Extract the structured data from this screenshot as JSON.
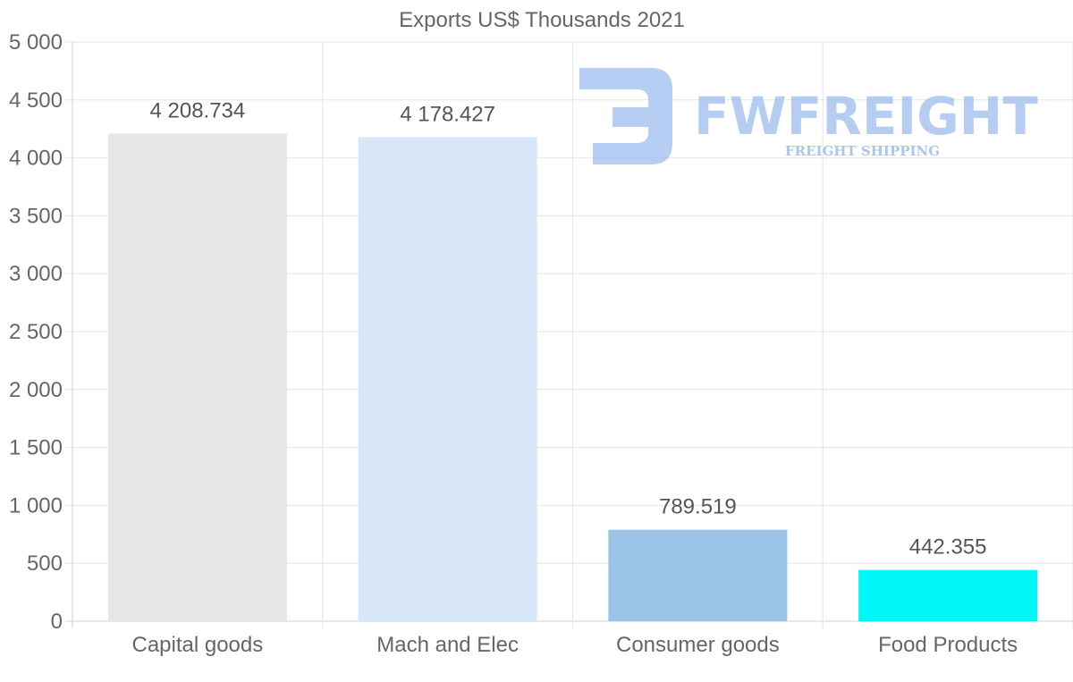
{
  "chart_data": {
    "type": "bar",
    "title": "Exports US$ Thousands 2021",
    "categories": [
      "Capital goods",
      "Mach and Elec",
      "Consumer goods",
      "Food Products"
    ],
    "values": [
      4208.734,
      4178.427,
      789.519,
      442.355
    ],
    "value_labels": [
      "4 208.734",
      "4 178.427",
      "789.519",
      "442.355"
    ],
    "colors": [
      "#e6e6e6",
      "#d7e7f8",
      "#9bc4e7",
      "#00f7f7"
    ],
    "ylim": [
      0,
      5000
    ],
    "yticks": [
      0,
      500,
      1000,
      1500,
      2000,
      2500,
      3000,
      3500,
      4000,
      4500,
      5000
    ],
    "ytick_labels": [
      "0",
      "500",
      "1 000",
      "1 500",
      "2 000",
      "2 500",
      "3 000",
      "3 500",
      "4 000",
      "4 500",
      "5 000"
    ],
    "xlabel": "",
    "ylabel": "",
    "grid": true
  },
  "watermark": {
    "brand": "FWFREIGHT",
    "tagline": "FREIGHT SHIPPING",
    "color": "#9dbcf0"
  }
}
